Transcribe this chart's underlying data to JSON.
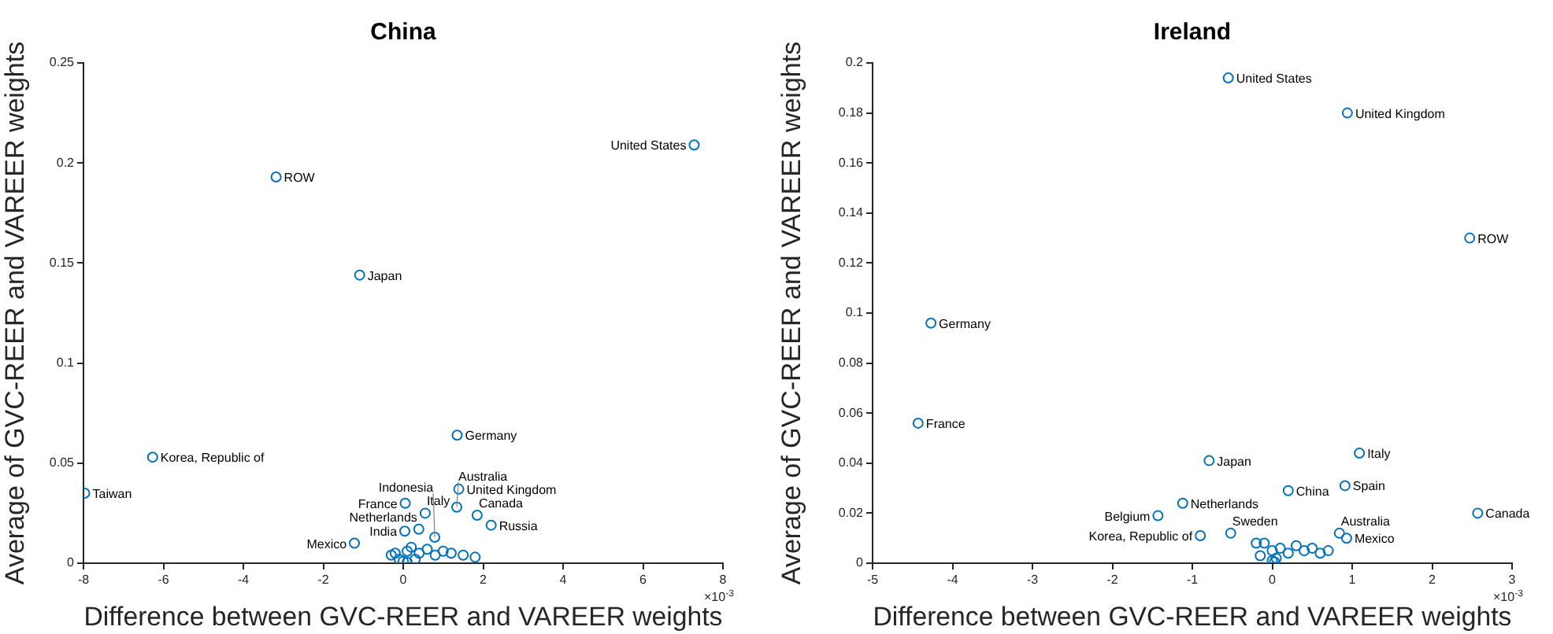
{
  "chart_data": [
    {
      "type": "scatter",
      "title": "China",
      "xlabel": "Difference between GVC-REER and VAREER weights",
      "ylabel": "Average of GVC-REER and VAREER weights",
      "marker": "circle",
      "color": "#0072bd",
      "x": [
        7.28,
        -3.18,
        -1.09,
        1.35,
        -6.27,
        -7.97,
        1.39,
        0.05,
        1.34,
        0.55,
        1.85,
        2.2,
        0.04,
        0.39,
        0.79,
        -1.22,
        -0.3,
        -0.1,
        0.1,
        0.2,
        0.4,
        0.6,
        0.8,
        1.0,
        1.2,
        1.5,
        1.8,
        0.0,
        0.1,
        0.3,
        -0.2
      ],
      "values": [
        0.209,
        0.193,
        0.144,
        0.064,
        0.053,
        0.035,
        0.037,
        0.03,
        0.028,
        0.025,
        0.024,
        0.019,
        0.016,
        0.017,
        0.013,
        0.01,
        0.004,
        0.002,
        0.006,
        0.008,
        0.005,
        0.007,
        0.004,
        0.006,
        0.005,
        0.004,
        0.003,
        0.001,
        0.0005,
        0.002,
        0.005
      ],
      "xlim": [
        -8,
        8
      ],
      "xticks": [
        -8,
        -6,
        -4,
        -2,
        0,
        2,
        4,
        6,
        8
      ],
      "ylim": [
        0,
        0.25
      ],
      "yticks": [
        0,
        0.05,
        0.1,
        0.15,
        0.2,
        0.25
      ],
      "annotations": [
        {
          "text": "United States",
          "x": 7.28,
          "y": 0.209
        },
        {
          "text": "ROW",
          "x": -3.18,
          "y": 0.193
        },
        {
          "text": "Japan",
          "x": -1.09,
          "y": 0.144
        },
        {
          "text": "Germany",
          "x": 1.35,
          "y": 0.064
        },
        {
          "text": "Korea, Republic of",
          "x": -6.27,
          "y": 0.053
        },
        {
          "text": "Taiwan",
          "x": -7.97,
          "y": 0.035
        },
        {
          "text": "United Kingdom",
          "x": 1.39,
          "y": 0.037
        },
        {
          "text": "France",
          "x": 0.05,
          "y": 0.03
        },
        {
          "text": "Australia",
          "x": 1.34,
          "y": 0.028
        },
        {
          "text": "Italy",
          "x": 0.55,
          "y": 0.025
        },
        {
          "text": "Canada",
          "x": 1.85,
          "y": 0.024
        },
        {
          "text": "Russia",
          "x": 2.2,
          "y": 0.019
        },
        {
          "text": "India",
          "x": 0.04,
          "y": 0.016
        },
        {
          "text": "Netherlands",
          "x": 0.39,
          "y": 0.017
        },
        {
          "text": "Indonesia",
          "x": 0.79,
          "y": 0.013
        },
        {
          "text": "Mexico",
          "x": -1.22,
          "y": 0.01
        },
        "×10$^{-3}$"
      ]
    },
    {
      "type": "scatter",
      "title": "Ireland",
      "xlabel": "Difference between GVC-REER and VAREER weights",
      "ylabel": "Average of GVC-REER and VAREER weights",
      "marker": "circle",
      "color": "#0072bd",
      "x": [
        -0.55,
        0.94,
        2.47,
        -4.27,
        -4.43,
        1.09,
        -0.79,
        0.2,
        0.91,
        2.57,
        -1.12,
        -1.43,
        -0.9,
        -0.52,
        0.84,
        0.93,
        -0.2,
        -0.15,
        -0.1,
        0.0,
        0.05,
        0.1,
        0.2,
        0.3,
        0.4,
        0.5,
        0.6,
        0.7,
        0.0,
        0.03
      ],
      "values": [
        0.194,
        0.18,
        0.13,
        0.096,
        0.056,
        0.044,
        0.041,
        0.029,
        0.031,
        0.02,
        0.024,
        0.019,
        0.011,
        0.012,
        0.012,
        0.01,
        0.008,
        0.003,
        0.008,
        0.005,
        0.002,
        0.006,
        0.004,
        0.007,
        0.005,
        0.006,
        0.004,
        0.005,
        0.001,
        0.0005
      ],
      "xlim": [
        -5,
        3
      ],
      "xticks": [
        -5,
        -4,
        -3,
        -2,
        -1,
        0,
        1,
        2,
        3
      ],
      "ylim": [
        0,
        0.2
      ],
      "yticks": [
        0,
        0.02,
        0.04,
        0.06,
        0.08,
        0.1,
        0.12,
        0.14,
        0.16,
        0.18,
        0.2
      ],
      "annotations": [
        {
          "text": "United States",
          "x": -0.55,
          "y": 0.194
        },
        {
          "text": "United Kingdom",
          "x": 0.94,
          "y": 0.18
        },
        {
          "text": "ROW",
          "x": 2.47,
          "y": 0.13
        },
        {
          "text": "Germany",
          "x": -4.27,
          "y": 0.096
        },
        {
          "text": "France",
          "x": -4.43,
          "y": 0.056
        },
        {
          "text": "Italy",
          "x": 1.09,
          "y": 0.044
        },
        {
          "text": "Japan",
          "x": -0.79,
          "y": 0.041
        },
        {
          "text": "China",
          "x": 0.2,
          "y": 0.029
        },
        {
          "text": "Spain",
          "x": 0.91,
          "y": 0.031
        },
        {
          "text": "Canada",
          "x": 2.57,
          "y": 0.02
        },
        {
          "text": "Netherlands",
          "x": -1.12,
          "y": 0.024
        },
        {
          "text": "Belgium",
          "x": -1.43,
          "y": 0.019
        },
        {
          "text": "Korea, Republic of",
          "x": -0.9,
          "y": 0.011
        },
        {
          "text": "Sweden",
          "x": -0.52,
          "y": 0.012
        },
        {
          "text": "Australia",
          "x": 0.84,
          "y": 0.012
        },
        {
          "text": "Mexico",
          "x": 0.93,
          "y": 0.01
        },
        "×10$^{-3}$"
      ]
    }
  ]
}
